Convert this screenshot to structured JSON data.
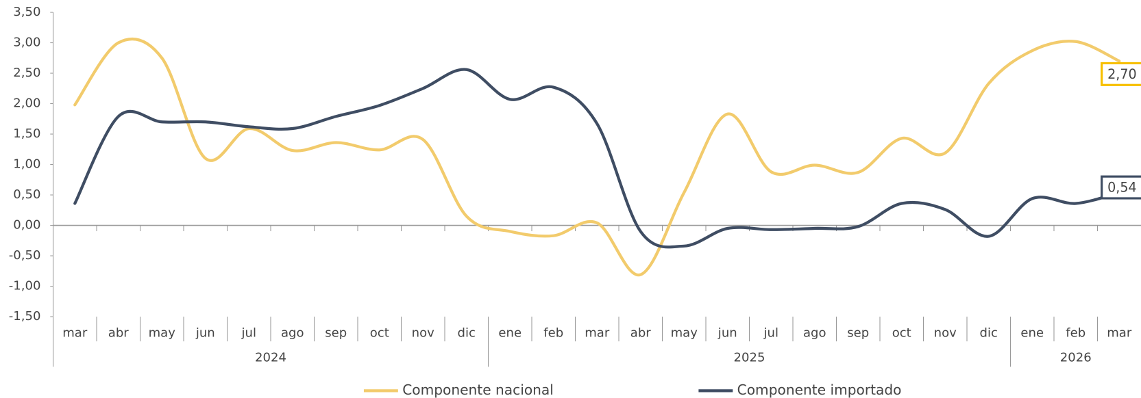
{
  "chart_data": {
    "type": "line",
    "categories": [
      "mar",
      "abr",
      "may",
      "jun",
      "jul",
      "ago",
      "sep",
      "oct",
      "nov",
      "dic",
      "ene",
      "feb",
      "mar",
      "abr",
      "may",
      "jun",
      "jul",
      "ago",
      "sep",
      "oct",
      "nov",
      "dic",
      "ene",
      "feb",
      "mar"
    ],
    "years": [
      "2024",
      "2025",
      "2026"
    ],
    "series": [
      {
        "name": "Componente nacional",
        "color": "#f2cb6c",
        "values": [
          1.98,
          3.0,
          2.75,
          1.1,
          1.59,
          1.23,
          1.36,
          1.24,
          1.41,
          0.15,
          -0.1,
          -0.17,
          0.04,
          -0.81,
          0.54,
          1.83,
          0.88,
          0.99,
          0.87,
          1.43,
          1.19,
          2.33,
          2.87,
          3.02,
          2.7
        ],
        "value_labels": [
          null,
          null,
          null,
          null,
          null,
          null,
          null,
          null,
          null,
          null,
          null,
          null,
          null,
          null,
          null,
          null,
          null,
          null,
          null,
          null,
          null,
          null,
          null,
          null,
          "2,70"
        ],
        "label_border": "#f7bf00"
      },
      {
        "name": "Componente importado",
        "color": "#3f4d63",
        "values": [
          0.36,
          1.79,
          1.7,
          1.7,
          1.62,
          1.59,
          1.79,
          1.97,
          2.25,
          2.56,
          2.07,
          2.27,
          1.67,
          -0.1,
          -0.34,
          -0.05,
          -0.07,
          -0.05,
          -0.02,
          0.36,
          0.26,
          -0.18,
          0.44,
          0.36,
          0.54
        ],
        "value_labels": [
          null,
          null,
          null,
          null,
          null,
          null,
          null,
          null,
          null,
          null,
          null,
          null,
          null,
          null,
          null,
          null,
          null,
          null,
          null,
          null,
          null,
          null,
          null,
          null,
          "0,54"
        ],
        "label_border": "#3f4d63"
      }
    ],
    "ylim": [
      -1.5,
      3.5
    ],
    "yticks": [
      {
        "value": -1.5,
        "label": "-1,50"
      },
      {
        "value": -1,
        "label": "-1,00"
      },
      {
        "value": -0.5,
        "label": "-0,50"
      },
      {
        "value": 0,
        "label": "0,00"
      },
      {
        "value": 0.5,
        "label": "0,50"
      },
      {
        "value": 1,
        "label": "1,00"
      },
      {
        "value": 1.5,
        "label": "1,50"
      },
      {
        "value": 2,
        "label": "2,00"
      },
      {
        "value": 2.5,
        "label": "2,50"
      },
      {
        "value": 3,
        "label": "3,00"
      },
      {
        "value": 3.5,
        "label": "3,50"
      }
    ],
    "grid": false,
    "legend": "bottom"
  }
}
